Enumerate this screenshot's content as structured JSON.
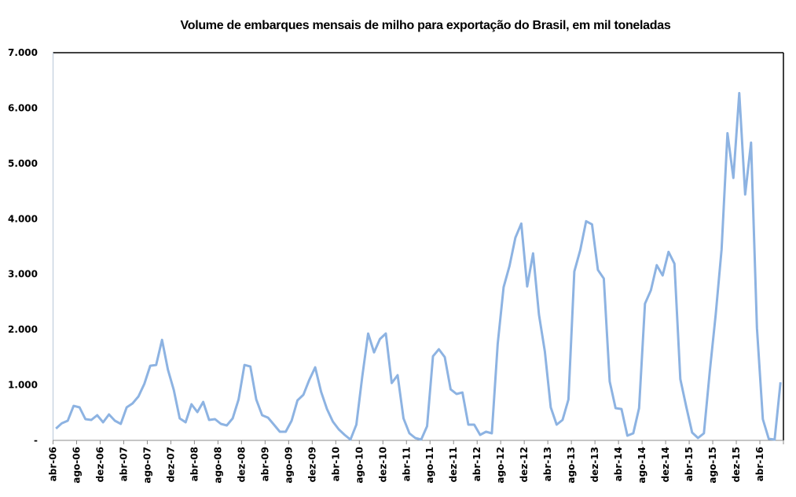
{
  "chart_data": {
    "type": "line",
    "title": "Volume de embarques mensais de milho para exportação do Brasil, em mil toneladas",
    "xlabel": "",
    "ylabel": "",
    "ylim": [
      0,
      7000
    ],
    "y_ticks": [
      0,
      1000,
      2000,
      3000,
      4000,
      5000,
      6000,
      7000
    ],
    "y_tick_labels": [
      "-",
      "1.000",
      "2.000",
      "3.000",
      "4.000",
      "5.000",
      "6.000",
      "7.000"
    ],
    "x_tick_labels": [
      "abr-06",
      "ago-06",
      "dez-06",
      "abr-07",
      "ago-07",
      "dez-07",
      "abr-08",
      "ago-08",
      "dez-08",
      "abr-09",
      "ago-09",
      "dez-09",
      "abr-10",
      "ago-10",
      "dez-10",
      "abr-11",
      "ago-11",
      "dez-11",
      "abr-12",
      "ago-12",
      "dez-12",
      "abr-13",
      "ago-13",
      "dez-13",
      "abr-14",
      "ago-14",
      "dez-14",
      "abr-15",
      "ago-15",
      "dez-15",
      "abr-16"
    ],
    "x_range": [
      "abr-06",
      "jul-16"
    ],
    "grid": false,
    "legend": "none",
    "series": [
      {
        "name": "Volume de embarques",
        "color": "#8db3e2",
        "values": [
          213,
          310,
          355,
          624,
          596,
          383,
          369,
          454,
          326,
          468,
          355,
          298,
          596,
          667,
          794,
          1021,
          1348,
          1362,
          1815,
          1277,
          908,
          397,
          326,
          652,
          511,
          695,
          369,
          383,
          298,
          270,
          397,
          738,
          1362,
          1333,
          738,
          454,
          411,
          284,
          156,
          156,
          355,
          723,
          823,
          1092,
          1319,
          879,
          567,
          340,
          199,
          99,
          14,
          284,
          1150,
          1929,
          1589,
          1830,
          1929,
          1035,
          1177,
          397,
          128,
          43,
          14,
          255,
          1518,
          1645,
          1504,
          922,
          838,
          865,
          284,
          284,
          99,
          156,
          128,
          1745,
          2766,
          3149,
          3660,
          3915,
          2780,
          3376,
          2270,
          1603,
          596,
          284,
          369,
          738,
          3050,
          3433,
          3957,
          3901,
          3078,
          2922,
          1064,
          582,
          567,
          85,
          128,
          582,
          2468,
          2709,
          3163,
          2979,
          3404,
          3191,
          1106,
          610,
          142,
          43,
          128,
          1248,
          2270,
          3447,
          5546,
          4738,
          6270,
          4440,
          5376,
          2028,
          383,
          28,
          14,
          1050
        ]
      }
    ]
  }
}
